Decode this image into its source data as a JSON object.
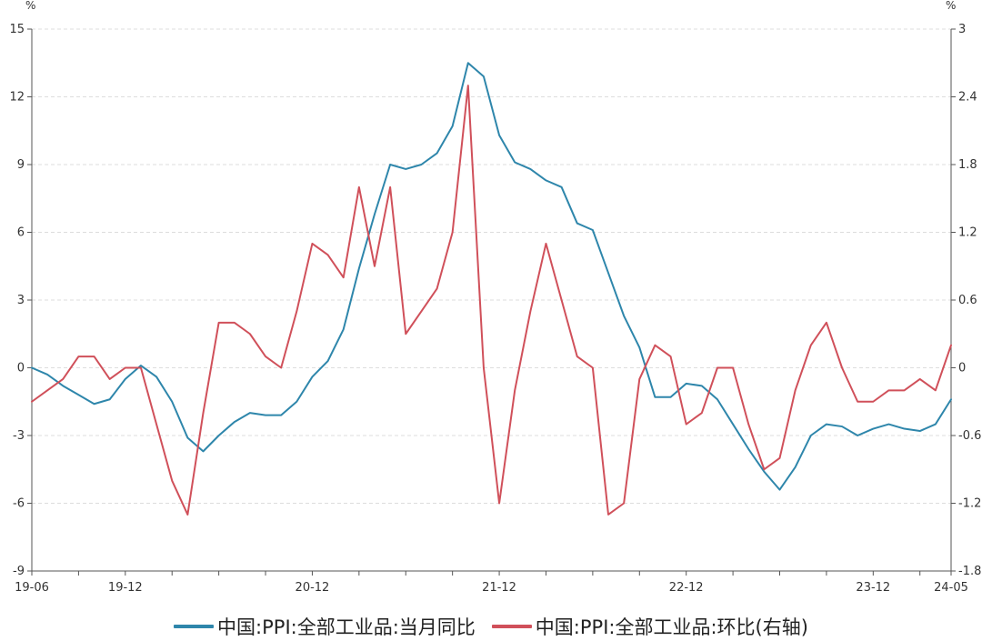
{
  "chart_data": {
    "type": "line",
    "left_unit": "%",
    "right_unit": "%",
    "x_tick_labels": [
      "19-06",
      "19-12",
      "20-12",
      "21-12",
      "22-12",
      "23-12",
      "24-05"
    ],
    "y_left_ticks": [
      "15",
      "12",
      "9",
      "6",
      "3",
      "0",
      "-3",
      "-6",
      "-9"
    ],
    "y_right_ticks": [
      "3",
      "2.4",
      "1.8",
      "1.2",
      "0.6",
      "0",
      "-0.6",
      "-1.2",
      "-1.8"
    ],
    "ylim_left": [
      -9,
      15
    ],
    "ylim_right": [
      -1.8,
      3
    ],
    "grid": "horizontal dashed",
    "legend_position": "bottom",
    "x": [
      "2019-06",
      "2019-07",
      "2019-08",
      "2019-09",
      "2019-10",
      "2019-11",
      "2019-12",
      "2020-01",
      "2020-02",
      "2020-03",
      "2020-04",
      "2020-05",
      "2020-06",
      "2020-07",
      "2020-08",
      "2020-09",
      "2020-10",
      "2020-11",
      "2020-12",
      "2021-01",
      "2021-02",
      "2021-03",
      "2021-04",
      "2021-05",
      "2021-06",
      "2021-07",
      "2021-08",
      "2021-09",
      "2021-10",
      "2021-11",
      "2021-12",
      "2022-01",
      "2022-02",
      "2022-03",
      "2022-04",
      "2022-05",
      "2022-06",
      "2022-07",
      "2022-08",
      "2022-09",
      "2022-10",
      "2022-11",
      "2022-12",
      "2023-01",
      "2023-02",
      "2023-03",
      "2023-04",
      "2023-05",
      "2023-06",
      "2023-07",
      "2023-08",
      "2023-09",
      "2023-10",
      "2023-11",
      "2023-12",
      "2024-01",
      "2024-02",
      "2024-03",
      "2024-04",
      "2024-05"
    ],
    "series": [
      {
        "name": "中国:PPI:全部工业品:当月同比",
        "axis": "left",
        "color": "#2e86ab",
        "values": [
          0.0,
          -0.3,
          -0.8,
          -1.2,
          -1.6,
          -1.4,
          -0.5,
          0.1,
          -0.4,
          -1.5,
          -3.1,
          -3.7,
          -3.0,
          -2.4,
          -2.0,
          -2.1,
          -2.1,
          -1.5,
          -0.4,
          0.3,
          1.7,
          4.4,
          6.8,
          9.0,
          8.8,
          9.0,
          9.5,
          10.7,
          13.5,
          12.9,
          10.3,
          9.1,
          8.8,
          8.3,
          8.0,
          6.4,
          6.1,
          4.2,
          2.3,
          0.9,
          -1.3,
          -1.3,
          -0.7,
          -0.8,
          -1.4,
          -2.5,
          -3.6,
          -4.6,
          -5.4,
          -4.4,
          -3.0,
          -2.5,
          -2.6,
          -3.0,
          -2.7,
          -2.5,
          -2.7,
          -2.8,
          -2.5,
          -1.4
        ]
      },
      {
        "name": "中国:PPI:全部工业品:环比(右轴)",
        "axis": "right",
        "color": "#d0505a",
        "values": [
          -0.3,
          -0.2,
          -0.1,
          0.1,
          0.1,
          -0.1,
          0.0,
          0.0,
          -0.5,
          -1.0,
          -1.3,
          -0.4,
          0.4,
          0.4,
          0.3,
          0.1,
          0.0,
          0.5,
          1.1,
          1.0,
          0.8,
          1.6,
          0.9,
          1.6,
          0.3,
          0.5,
          0.7,
          1.2,
          2.5,
          0.0,
          -1.2,
          -0.2,
          0.5,
          1.1,
          0.6,
          0.1,
          0.0,
          -1.3,
          -1.2,
          -0.1,
          0.2,
          0.1,
          -0.5,
          -0.4,
          0.0,
          0.0,
          -0.5,
          -0.9,
          -0.8,
          -0.2,
          0.2,
          0.4,
          0.0,
          -0.3,
          -0.3,
          -0.2,
          -0.2,
          -0.1,
          -0.2,
          0.2
        ]
      }
    ]
  }
}
